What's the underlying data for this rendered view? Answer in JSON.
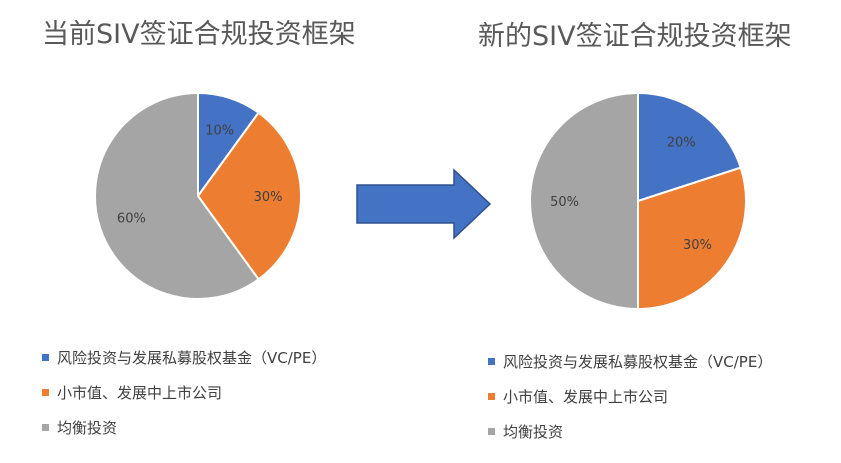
{
  "chart_data": [
    {
      "type": "pie",
      "title": "当前SIV签证合规投资框架",
      "categories": [
        "风险投资与发展私募股权基金（VC/PE）",
        "小市值、发展中上市公司",
        "均衡投资"
      ],
      "values": [
        10,
        30,
        60
      ],
      "labels": [
        "10%",
        "30%",
        "60%"
      ],
      "colors": [
        "#4472C4",
        "#ED7D31",
        "#A5A5A5"
      ],
      "legend": "bottom-left"
    },
    {
      "type": "pie",
      "title": "新的SIV签证合规投资框架",
      "categories": [
        "风险投资与发展私募股权基金（VC/PE）",
        "小市值、发展中上市公司",
        "均衡投资"
      ],
      "values": [
        20,
        30,
        50
      ],
      "labels": [
        "20%",
        "30%",
        "50%"
      ],
      "colors": [
        "#4472C4",
        "#ED7D31",
        "#A5A5A5"
      ],
      "legend": "bottom-left"
    }
  ],
  "arrow_color": "#4472C4"
}
